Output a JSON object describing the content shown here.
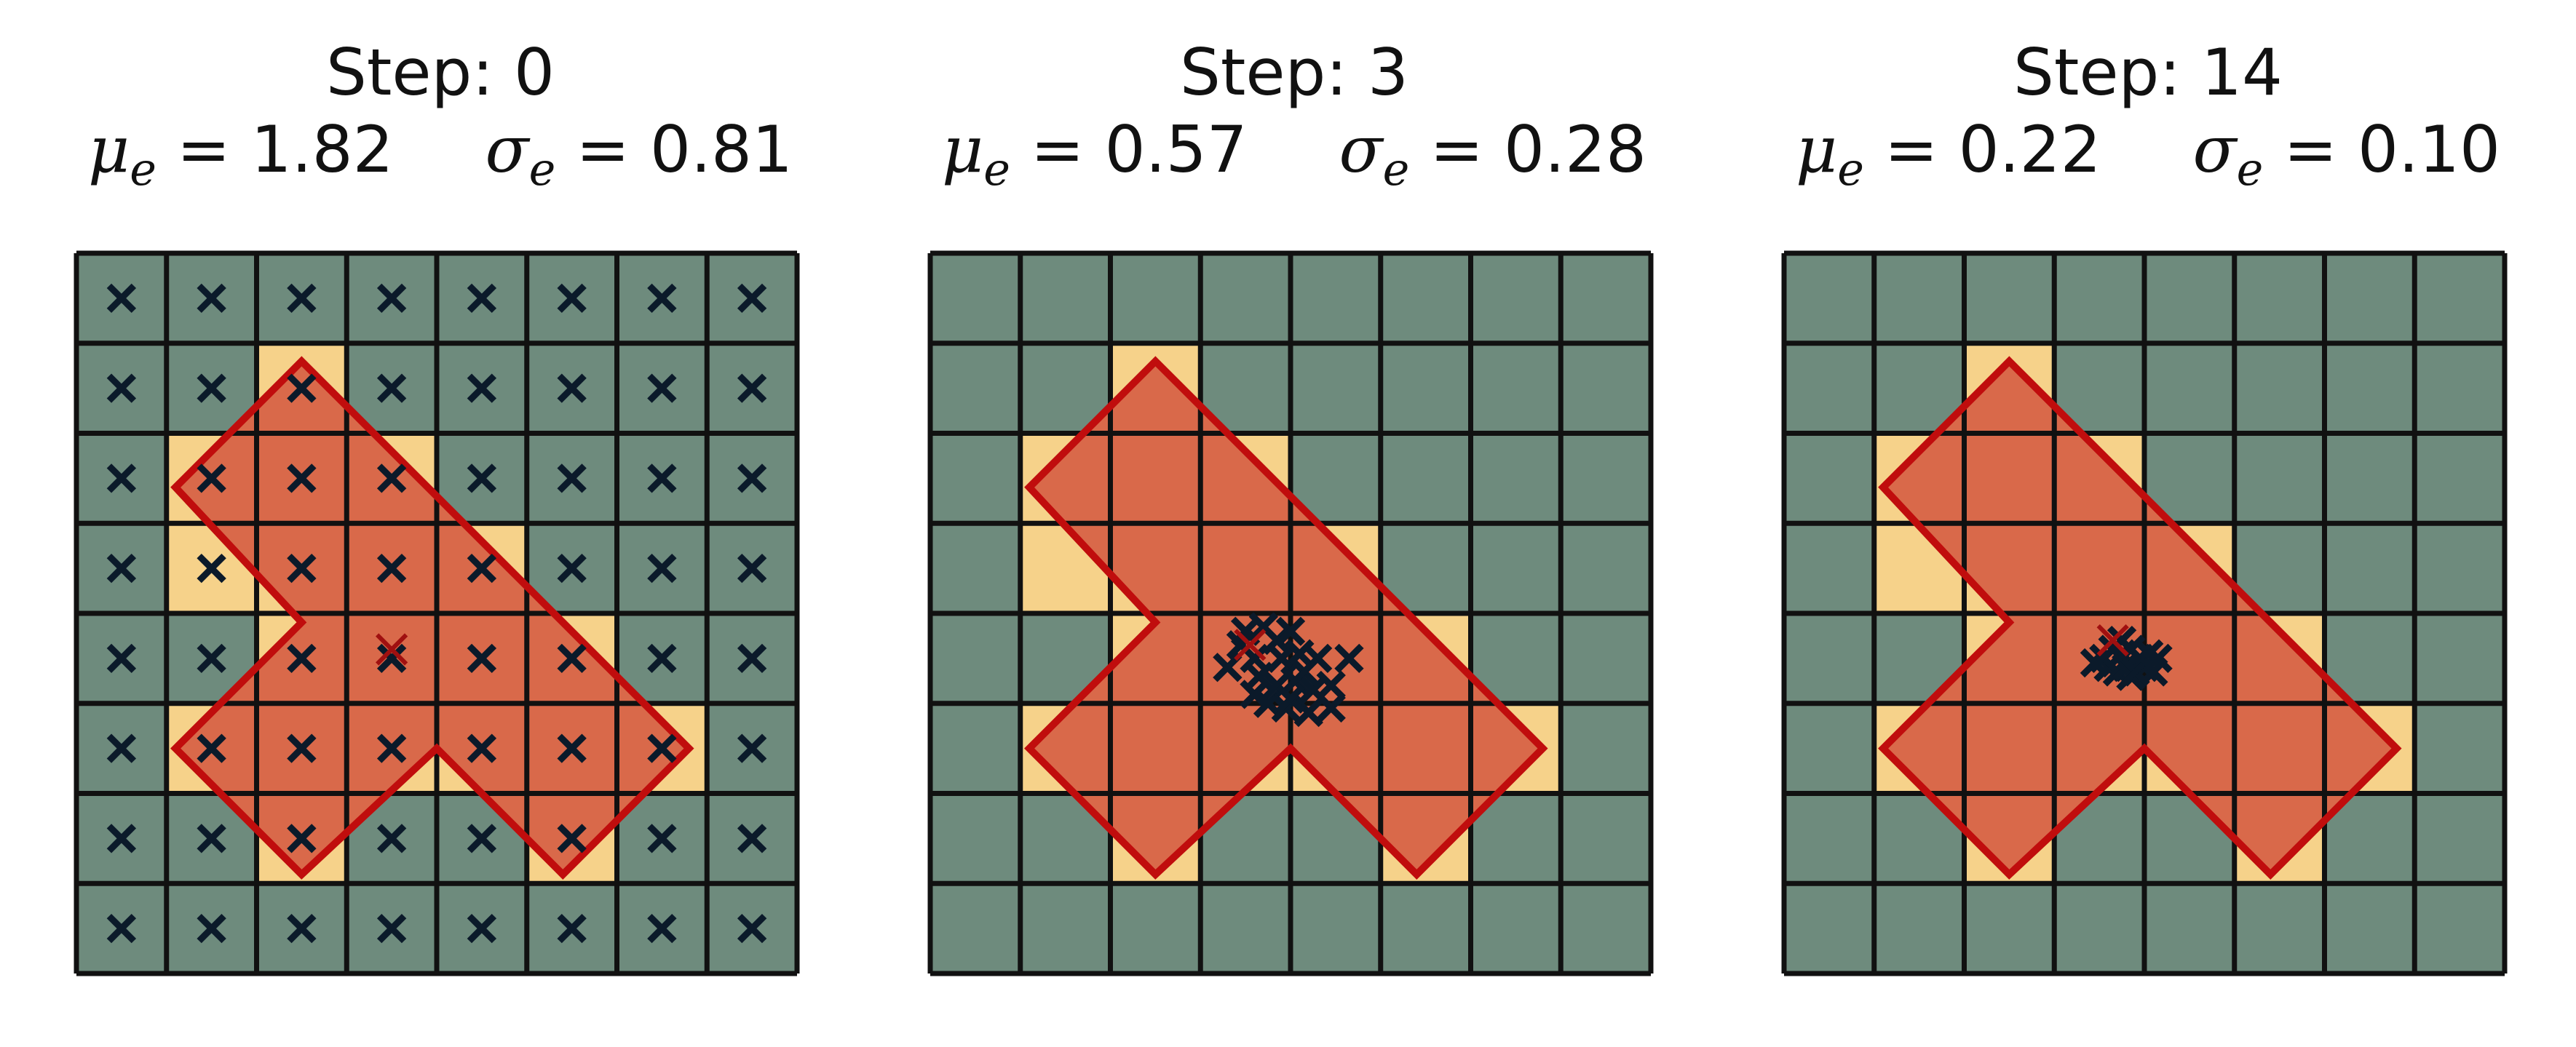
{
  "figure": {
    "grid_size": 8,
    "colors": {
      "background_cell": "#6e8b7d",
      "covered_cell_highlight": "#f6d28a",
      "polygon_fill": "#d9694a",
      "polygon_stroke": "#c00d0d",
      "grid_line": "#111111",
      "sample_marker": "#0b1a2a",
      "mean_marker": "#a01010"
    },
    "highlighted_cells": [
      [
        2,
        1
      ],
      [
        1,
        2
      ],
      [
        2,
        2
      ],
      [
        3,
        2
      ],
      [
        1,
        3
      ],
      [
        2,
        3
      ],
      [
        3,
        3
      ],
      [
        4,
        3
      ],
      [
        2,
        4
      ],
      [
        3,
        4
      ],
      [
        4,
        4
      ],
      [
        5,
        4
      ],
      [
        1,
        5
      ],
      [
        2,
        5
      ],
      [
        3,
        5
      ],
      [
        4,
        5
      ],
      [
        5,
        5
      ],
      [
        6,
        5
      ],
      [
        2,
        6
      ],
      [
        5,
        6
      ]
    ],
    "polygon": [
      [
        2.5,
        1.2
      ],
      [
        6.8,
        5.5
      ],
      [
        5.4,
        6.9
      ],
      [
        4.0,
        5.5
      ],
      [
        2.5,
        6.9
      ],
      [
        1.1,
        5.5
      ],
      [
        2.5,
        4.1
      ],
      [
        1.1,
        2.6
      ]
    ]
  },
  "panels": [
    {
      "id": "step-0",
      "title_prefix": "Step: ",
      "step": "0",
      "mu_label": "μ",
      "sigma_label": "σ",
      "subscript": "e",
      "mu_value": "= 1.82",
      "sigma_value": "= 0.81",
      "mean_point": [
        3.5,
        4.4
      ],
      "samples_mode": "grid_centers",
      "samples": []
    },
    {
      "id": "step-3",
      "title_prefix": "Step: ",
      "step": "3",
      "mu_label": "μ",
      "sigma_label": "σ",
      "subscript": "e",
      "mu_value": "= 0.57",
      "sigma_value": "= 0.28",
      "mean_point": [
        3.55,
        4.35
      ],
      "samples_mode": "points",
      "samples": [
        [
          3.5,
          4.2
        ],
        [
          3.7,
          4.15
        ],
        [
          3.85,
          4.3
        ],
        [
          4.0,
          4.2
        ],
        [
          3.6,
          4.5
        ],
        [
          3.9,
          4.5
        ],
        [
          4.1,
          4.45
        ],
        [
          4.3,
          4.5
        ],
        [
          3.3,
          4.6
        ],
        [
          3.65,
          4.7
        ],
        [
          3.85,
          4.8
        ],
        [
          4.05,
          4.75
        ],
        [
          4.25,
          4.85
        ],
        [
          4.45,
          4.8
        ],
        [
          3.75,
          5.0
        ],
        [
          3.95,
          5.05
        ],
        [
          4.2,
          5.1
        ],
        [
          4.45,
          5.05
        ],
        [
          3.6,
          4.9
        ],
        [
          4.0,
          4.95
        ],
        [
          3.45,
          4.35
        ],
        [
          4.15,
          4.65
        ],
        [
          4.65,
          4.5
        ]
      ]
    },
    {
      "id": "step-14",
      "title_prefix": "Step: ",
      "step": "14",
      "mu_label": "μ",
      "sigma_label": "σ",
      "subscript": "e",
      "mu_value": "= 0.22",
      "sigma_value": "= 0.10",
      "mean_point": [
        3.65,
        4.3
      ],
      "samples_mode": "points",
      "samples": [
        [
          3.55,
          4.5
        ],
        [
          3.65,
          4.4
        ],
        [
          3.75,
          4.45
        ],
        [
          3.85,
          4.4
        ],
        [
          3.95,
          4.5
        ],
        [
          4.05,
          4.45
        ],
        [
          3.6,
          4.6
        ],
        [
          3.7,
          4.65
        ],
        [
          3.8,
          4.6
        ],
        [
          3.9,
          4.65
        ],
        [
          4.0,
          4.6
        ],
        [
          4.1,
          4.65
        ],
        [
          3.45,
          4.55
        ],
        [
          3.75,
          4.3
        ],
        [
          3.85,
          4.7
        ],
        [
          4.15,
          4.5
        ]
      ]
    }
  ]
}
